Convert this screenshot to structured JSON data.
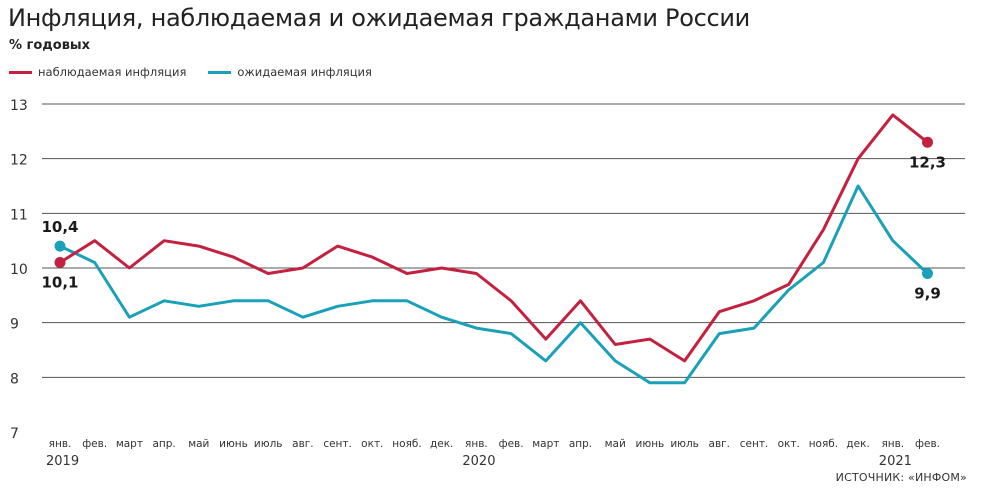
{
  "title": "Инфляция, наблюдаемая и ожидаемая гражданами России",
  "subtitle": "% годовых",
  "source": "ИСТОЧНИК: «ИНФОМ»",
  "colors": {
    "observed": "#c4203f",
    "expected": "#1aa0b8",
    "grid": "#555555"
  },
  "chart_data": {
    "type": "line",
    "categories": [
      "янв.",
      "фев.",
      "март",
      "апр.",
      "май",
      "июнь",
      "июль",
      "авг.",
      "сент.",
      "окт.",
      "нояб.",
      "дек.",
      "янв.",
      "фев.",
      "март",
      "апр.",
      "май",
      "июнь",
      "июль",
      "авг.",
      "сент.",
      "окт.",
      "нояб.",
      "дек.",
      "янв.",
      "фев."
    ],
    "years": [
      {
        "label": "2019",
        "index": 0
      },
      {
        "label": "2020",
        "index": 12
      },
      {
        "label": "2021",
        "index": 24
      }
    ],
    "series": [
      {
        "name": "наблюдаемая инфляция",
        "color": "#c4203f",
        "values": [
          10.1,
          10.5,
          10.0,
          10.5,
          10.4,
          10.2,
          9.9,
          10.0,
          10.4,
          10.2,
          9.9,
          10.0,
          9.9,
          9.4,
          8.7,
          9.4,
          8.6,
          8.7,
          8.3,
          9.2,
          9.4,
          9.7,
          10.7,
          12.0,
          12.8,
          12.3
        ]
      },
      {
        "name": "ожидаемая инфляция",
        "color": "#1aa0b8",
        "values": [
          10.4,
          10.1,
          9.1,
          9.4,
          9.3,
          9.4,
          9.4,
          9.1,
          9.3,
          9.4,
          9.4,
          9.1,
          8.9,
          8.8,
          8.3,
          9.0,
          8.3,
          7.9,
          7.9,
          8.8,
          8.9,
          9.6,
          10.1,
          11.5,
          10.5,
          9.9
        ]
      }
    ],
    "ylim": [
      7,
      13
    ],
    "yticks": [
      7,
      8,
      9,
      10,
      11,
      12,
      13
    ],
    "grid": true,
    "legend": "top-left",
    "annotations": [
      {
        "series": 1,
        "index": 0,
        "text": "10,4",
        "pos": "above"
      },
      {
        "series": 0,
        "index": 0,
        "text": "10,1",
        "pos": "below"
      },
      {
        "series": 0,
        "index": 25,
        "text": "12,3",
        "pos": "below"
      },
      {
        "series": 1,
        "index": 25,
        "text": "9,9",
        "pos": "below"
      }
    ]
  }
}
